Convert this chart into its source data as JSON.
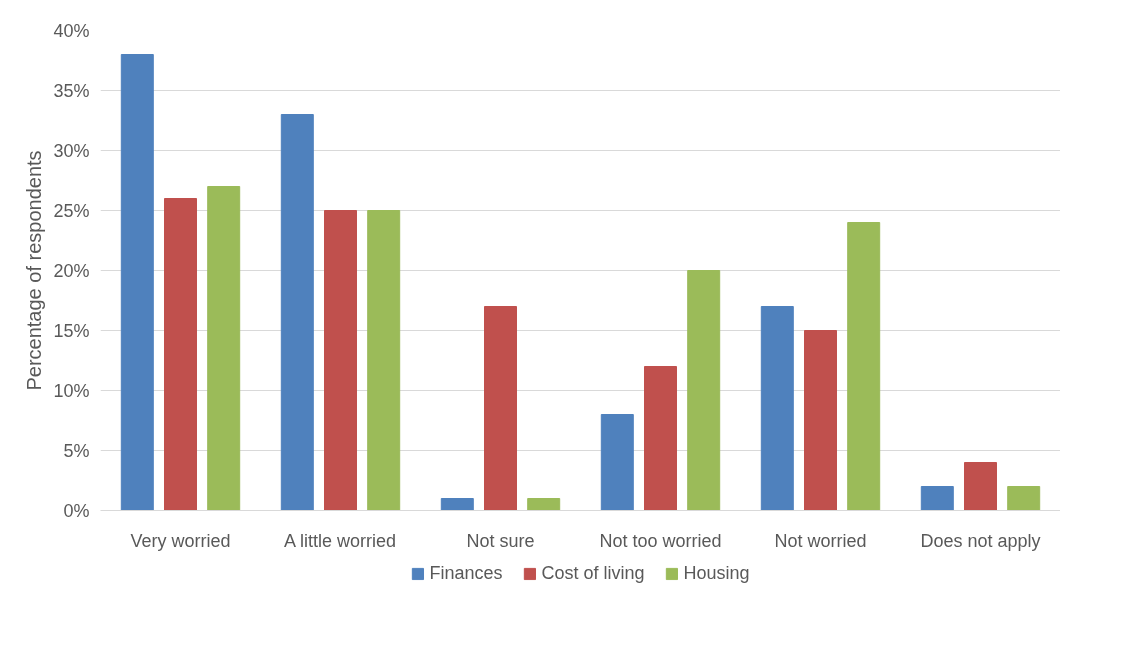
{
  "chart_data": {
    "type": "bar",
    "ylabel": "Percentage of respondents",
    "categories": [
      "Very worried",
      "A little worried",
      "Not sure",
      "Not too worried",
      "Not worried",
      "Does not apply"
    ],
    "series": [
      {
        "name": "Finances",
        "color": "#4f81bd",
        "values": [
          38,
          33,
          1,
          8,
          17,
          2
        ]
      },
      {
        "name": "Cost of living",
        "color": "#c0504d",
        "values": [
          26,
          25,
          17,
          12,
          15,
          4
        ]
      },
      {
        "name": "Housing",
        "color": "#9bbb59",
        "values": [
          27,
          25,
          1,
          20,
          24,
          2
        ]
      }
    ],
    "ylim": [
      0,
      40
    ],
    "yticks": [
      {
        "value": 0,
        "label": "0%"
      },
      {
        "value": 5,
        "label": "5%"
      },
      {
        "value": 10,
        "label": "10%"
      },
      {
        "value": 15,
        "label": "15%"
      },
      {
        "value": 20,
        "label": "20%"
      },
      {
        "value": 25,
        "label": "25%"
      },
      {
        "value": 30,
        "label": "30%"
      },
      {
        "value": 35,
        "label": "35%"
      },
      {
        "value": 40,
        "label": "40%"
      }
    ],
    "grid": "y",
    "legend": "bottom"
  }
}
